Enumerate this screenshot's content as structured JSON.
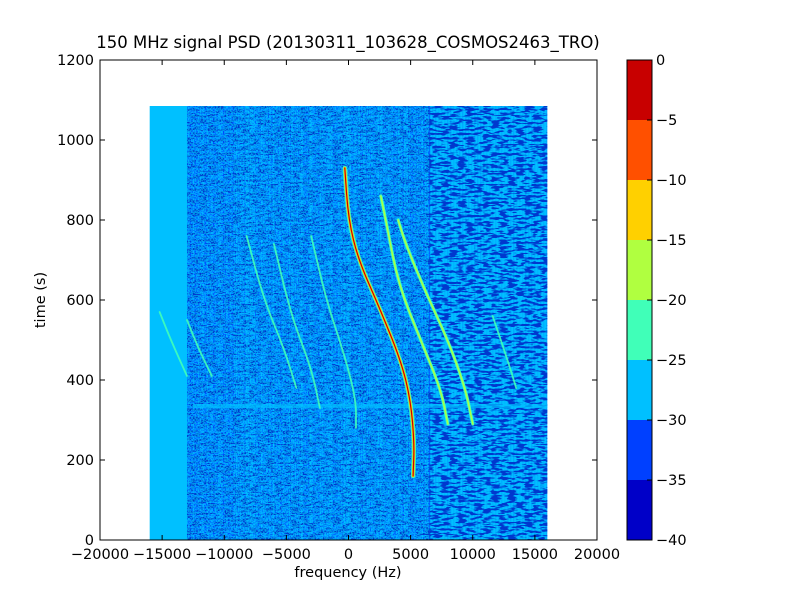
{
  "chart_data": {
    "type": "heatmap",
    "title": "150 MHz signal PSD (20130311_103628_COSMOS2463_TRO)",
    "xlabel": "frequency (Hz)",
    "ylabel": "time (s)",
    "xlim": [
      -20000,
      20000
    ],
    "ylim": [
      0,
      1200
    ],
    "x_ticks": [
      -20000,
      -15000,
      -10000,
      -5000,
      0,
      5000,
      10000,
      15000,
      20000
    ],
    "x_tick_labels": [
      "−20000",
      "−15000",
      "−10000",
      "−5000",
      "0",
      "5000",
      "10000",
      "15000",
      "20000"
    ],
    "y_ticks": [
      0,
      200,
      400,
      600,
      800,
      1000,
      1200
    ],
    "y_tick_labels": [
      "0",
      "200",
      "400",
      "600",
      "800",
      "1000",
      "1200"
    ],
    "data_extent": {
      "x": [
        -16000,
        16000
      ],
      "y": [
        0,
        1085
      ]
    },
    "grid": false,
    "colorbar": {
      "min": -40,
      "max": 0,
      "ticks": [
        0,
        -5,
        -10,
        -15,
        -20,
        -25,
        -30,
        -35,
        -40
      ],
      "tick_labels": [
        "0",
        "−5",
        "−10",
        "−15",
        "−20",
        "−25",
        "−30",
        "−35",
        "−40"
      ],
      "levels": [
        {
          "from": -40,
          "to": -35,
          "color": "#0000c8"
        },
        {
          "from": -35,
          "to": -30,
          "color": "#0040ff"
        },
        {
          "from": -30,
          "to": -25,
          "color": "#00c0ff"
        },
        {
          "from": -25,
          "to": -20,
          "color": "#40ffb8"
        },
        {
          "from": -20,
          "to": -15,
          "color": "#b0ff40"
        },
        {
          "from": -15,
          "to": -10,
          "color": "#ffd000"
        },
        {
          "from": -10,
          "to": -5,
          "color": "#ff5000"
        },
        {
          "from": -5,
          "to": 0,
          "color": "#c80000"
        }
      ]
    },
    "background_level_color": "#00c0ff",
    "noise_band": {
      "x": [
        -13000,
        6500
      ],
      "color": "#0040ff"
    },
    "quiet_band": {
      "x": [
        6500,
        16000
      ]
    },
    "horizontal_artifact": {
      "y": 335,
      "x": [
        -12500,
        16000
      ]
    },
    "traces": [
      {
        "level": "strong",
        "color": "#c80000",
        "points": [
          [
            5200,
            160
          ],
          [
            5300,
            240
          ],
          [
            5000,
            350
          ],
          [
            4200,
            450
          ],
          [
            2500,
            580
          ],
          [
            800,
            700
          ],
          [
            0,
            800
          ],
          [
            -300,
            930
          ]
        ]
      },
      {
        "level": "medium",
        "color": "#b0ff40",
        "points": [
          [
            10000,
            290
          ],
          [
            9400,
            380
          ],
          [
            8000,
            500
          ],
          [
            6200,
            620
          ],
          [
            4600,
            740
          ],
          [
            4000,
            800
          ]
        ]
      },
      {
        "level": "medium",
        "color": "#b0ff40",
        "points": [
          [
            8000,
            290
          ],
          [
            7400,
            380
          ],
          [
            5800,
            500
          ],
          [
            4000,
            640
          ],
          [
            3000,
            800
          ],
          [
            2600,
            860
          ]
        ]
      },
      {
        "level": "weak",
        "color": "#40ffb8",
        "points": [
          [
            13500,
            380
          ],
          [
            12800,
            450
          ],
          [
            11600,
            560
          ]
        ]
      },
      {
        "level": "weak",
        "color": "#40ffb8",
        "points": [
          [
            600,
            280
          ],
          [
            600,
            350
          ],
          [
            -300,
            460
          ],
          [
            -1800,
            600
          ],
          [
            -3000,
            760
          ]
        ]
      },
      {
        "level": "weak",
        "color": "#40ffb8",
        "points": [
          [
            -2300,
            330
          ],
          [
            -3000,
            430
          ],
          [
            -4600,
            560
          ],
          [
            -6000,
            740
          ]
        ]
      },
      {
        "level": "weak",
        "color": "#40ffb8",
        "points": [
          [
            -4200,
            380
          ],
          [
            -5200,
            480
          ],
          [
            -6800,
            600
          ],
          [
            -8200,
            760
          ]
        ]
      },
      {
        "level": "weak",
        "color": "#40ffb8",
        "points": [
          [
            -11000,
            410
          ],
          [
            -12100,
            480
          ],
          [
            -13000,
            550
          ]
        ]
      },
      {
        "level": "weak",
        "color": "#40ffb8",
        "points": [
          [
            -13000,
            410
          ],
          [
            -14300,
            500
          ],
          [
            -15200,
            570
          ]
        ]
      }
    ]
  }
}
